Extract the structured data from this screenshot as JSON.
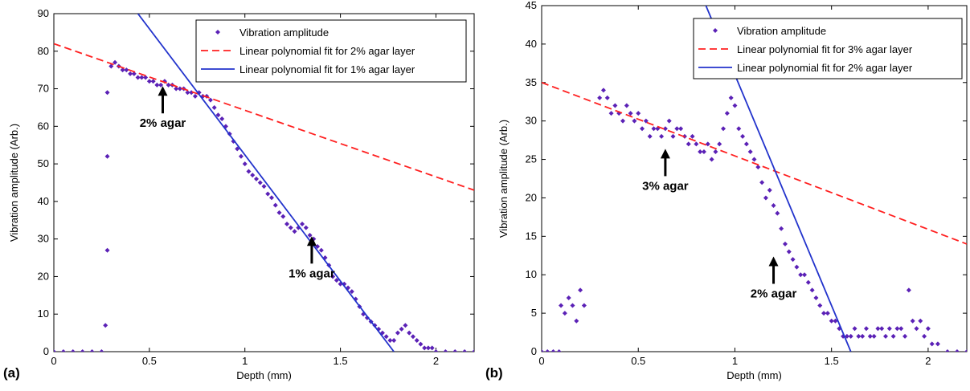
{
  "chart_data": [
    {
      "type": "scatter",
      "panel_label": "(a)",
      "xlabel": "Depth (mm)",
      "ylabel": "Vibration amplitude (Arb.)",
      "xlim": [
        0,
        2.2
      ],
      "ylim": [
        0,
        90
      ],
      "xticks": [
        0,
        0.5,
        1,
        1.5,
        2
      ],
      "yticks": [
        0,
        10,
        20,
        30,
        40,
        50,
        60,
        70,
        80,
        90
      ],
      "grid": false,
      "legend_position": "top-right",
      "series": [
        {
          "name": "Vibration amplitude",
          "kind": "scatter",
          "color": "#5b21b6",
          "x": [
            0.0,
            0.05,
            0.1,
            0.15,
            0.2,
            0.25,
            0.27,
            0.28,
            0.28,
            0.28,
            0.3,
            0.32,
            0.34,
            0.36,
            0.38,
            0.4,
            0.42,
            0.44,
            0.46,
            0.48,
            0.5,
            0.52,
            0.54,
            0.56,
            0.58,
            0.6,
            0.62,
            0.64,
            0.66,
            0.68,
            0.7,
            0.72,
            0.74,
            0.76,
            0.78,
            0.8,
            0.82,
            0.84,
            0.86,
            0.88,
            0.9,
            0.92,
            0.94,
            0.96,
            0.98,
            1.0,
            1.02,
            1.04,
            1.06,
            1.08,
            1.1,
            1.12,
            1.14,
            1.16,
            1.18,
            1.2,
            1.22,
            1.24,
            1.26,
            1.28,
            1.3,
            1.32,
            1.34,
            1.36,
            1.38,
            1.4,
            1.42,
            1.44,
            1.46,
            1.48,
            1.5,
            1.52,
            1.54,
            1.56,
            1.58,
            1.6,
            1.62,
            1.64,
            1.66,
            1.68,
            1.7,
            1.72,
            1.74,
            1.76,
            1.78,
            1.8,
            1.82,
            1.84,
            1.86,
            1.88,
            1.9,
            1.92,
            1.94,
            1.96,
            1.98,
            2.0,
            2.05,
            2.1,
            2.15,
            2.2
          ],
          "y": [
            0,
            0,
            0,
            0,
            0,
            0,
            7,
            27,
            52,
            69,
            76,
            77,
            76,
            75,
            75,
            74,
            74,
            73,
            73,
            73,
            72,
            72,
            71,
            71,
            72,
            71,
            71,
            70,
            70,
            70,
            69,
            69,
            68,
            69,
            68,
            68,
            67,
            65,
            63,
            62,
            60,
            58,
            56,
            54,
            52,
            50,
            48,
            47,
            46,
            45,
            44,
            42,
            41,
            39,
            37,
            36,
            34,
            33,
            32,
            33,
            34,
            33,
            31,
            30,
            28,
            27,
            25,
            23,
            20,
            19,
            18,
            18,
            17,
            16,
            14,
            12,
            10,
            9,
            8,
            7,
            6,
            5,
            4,
            3,
            3,
            5,
            6,
            7,
            5,
            4,
            3,
            2,
            1,
            1,
            1,
            0,
            0,
            0,
            0,
            0
          ]
        },
        {
          "name": "Linear polynomial fit for 2% agar layer",
          "kind": "line",
          "style": "dashed",
          "color": "#ff2020",
          "x": [
            0,
            2.2
          ],
          "y": [
            82,
            43
          ]
        },
        {
          "name": "Linear polynomial fit for 1% agar layer",
          "kind": "line",
          "style": "solid",
          "color": "#2233cc",
          "x": [
            0.44,
            1.78
          ],
          "y": [
            90,
            0
          ]
        }
      ],
      "annotations": [
        {
          "text": "2% agar",
          "x": 0.57,
          "y": 72
        },
        {
          "text": "1% agar",
          "x": 1.35,
          "y": 32
        }
      ]
    },
    {
      "type": "scatter",
      "panel_label": "(b)",
      "xlabel": "Depth (mm)",
      "ylabel": "Vibration amplitude (Arb.)",
      "xlim": [
        0,
        2.2
      ],
      "ylim": [
        0,
        45
      ],
      "xticks": [
        0,
        0.5,
        1,
        1.5,
        2
      ],
      "yticks": [
        0,
        5,
        10,
        15,
        20,
        25,
        30,
        35,
        40,
        45
      ],
      "grid": false,
      "legend_position": "top-right",
      "series": [
        {
          "name": "Vibration amplitude",
          "kind": "scatter",
          "color": "#5b21b6",
          "x": [
            0.0,
            0.03,
            0.06,
            0.09,
            0.1,
            0.12,
            0.14,
            0.16,
            0.18,
            0.2,
            0.22,
            0.3,
            0.32,
            0.34,
            0.36,
            0.38,
            0.4,
            0.42,
            0.44,
            0.46,
            0.48,
            0.5,
            0.52,
            0.54,
            0.56,
            0.58,
            0.6,
            0.62,
            0.64,
            0.66,
            0.68,
            0.7,
            0.72,
            0.74,
            0.76,
            0.78,
            0.8,
            0.82,
            0.84,
            0.86,
            0.88,
            0.9,
            0.92,
            0.94,
            0.96,
            0.98,
            1.0,
            1.02,
            1.04,
            1.06,
            1.08,
            1.1,
            1.12,
            1.14,
            1.16,
            1.18,
            1.2,
            1.22,
            1.24,
            1.26,
            1.28,
            1.3,
            1.32,
            1.34,
            1.36,
            1.38,
            1.4,
            1.42,
            1.44,
            1.46,
            1.48,
            1.5,
            1.52,
            1.54,
            1.56,
            1.58,
            1.6,
            1.62,
            1.64,
            1.66,
            1.68,
            1.7,
            1.72,
            1.74,
            1.76,
            1.78,
            1.8,
            1.82,
            1.84,
            1.86,
            1.88,
            1.9,
            1.92,
            1.94,
            1.96,
            1.98,
            2.0,
            2.02,
            2.05,
            2.1,
            2.15,
            2.2
          ],
          "y": [
            0,
            0,
            0,
            0,
            6,
            5,
            7,
            6,
            4,
            8,
            6,
            33,
            34,
            33,
            31,
            32,
            31,
            30,
            32,
            31,
            30,
            31,
            29,
            30,
            28,
            29,
            29,
            28,
            29,
            30,
            28,
            29,
            29,
            28,
            27,
            28,
            27,
            26,
            26,
            27,
            25,
            26,
            27,
            29,
            31,
            33,
            32,
            29,
            28,
            27,
            26,
            25,
            24,
            22,
            20,
            21,
            19,
            18,
            16,
            14,
            13,
            12,
            11,
            10,
            10,
            9,
            8,
            7,
            6,
            5,
            5,
            4,
            4,
            3,
            2,
            2,
            2,
            3,
            2,
            2,
            3,
            2,
            2,
            3,
            3,
            2,
            3,
            2,
            3,
            3,
            2,
            8,
            4,
            3,
            4,
            2,
            3,
            1,
            1,
            0,
            0,
            0
          ]
        },
        {
          "name": "Linear polynomial fit for 3% agar layer",
          "kind": "line",
          "style": "dashed",
          "color": "#ff2020",
          "x": [
            0,
            2.2
          ],
          "y": [
            35,
            14
          ]
        },
        {
          "name": "Linear polynomial fit for 2% agar layer",
          "kind": "line",
          "style": "solid",
          "color": "#2233cc",
          "x": [
            0.85,
            1.6
          ],
          "y": [
            45,
            0
          ]
        }
      ],
      "annotations": [
        {
          "text": "3% agar",
          "x": 0.64,
          "y": 27
        },
        {
          "text": "2% agar",
          "x": 1.2,
          "y": 13
        }
      ]
    }
  ]
}
